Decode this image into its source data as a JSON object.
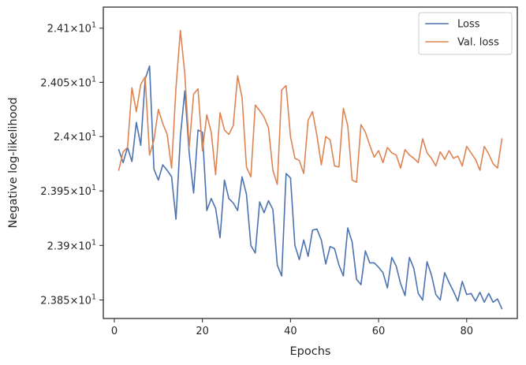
{
  "chart_data": {
    "type": "line",
    "title": "",
    "xlabel": "Epochs",
    "ylabel": "Negative log-likelihood",
    "xlim": [
      -2.5,
      91.5
    ],
    "ylim": [
      23.8331,
      24.1195
    ],
    "yscale": "log",
    "grid": false,
    "legend": "top-right",
    "xticks": [
      {
        "value": 0,
        "label": "0"
      },
      {
        "value": 20,
        "label": "20"
      },
      {
        "value": 40,
        "label": "40"
      },
      {
        "value": 60,
        "label": "60"
      },
      {
        "value": 80,
        "label": "80"
      }
    ],
    "yticks": [
      {
        "value": 23.85,
        "mant": "2.385",
        "exp": "1"
      },
      {
        "value": 23.9,
        "mant": "2.39",
        "exp": "1"
      },
      {
        "value": 23.95,
        "mant": "2.395",
        "exp": "1"
      },
      {
        "value": 24.0,
        "mant": "2.4",
        "exp": "1"
      },
      {
        "value": 24.05,
        "mant": "2.405",
        "exp": "1"
      },
      {
        "value": 24.1,
        "mant": "2.41",
        "exp": "1"
      }
    ],
    "series": [
      {
        "name": "Loss",
        "color": "#4c72b0",
        "x": [
          1,
          2,
          3,
          4,
          5,
          6,
          7,
          8,
          9,
          10,
          11,
          12,
          13,
          14,
          15,
          16,
          17,
          18,
          19,
          20,
          21,
          22,
          23,
          24,
          25,
          26,
          27,
          28,
          29,
          30,
          31,
          32,
          33,
          34,
          35,
          36,
          37,
          38,
          39,
          40,
          41,
          42,
          43,
          44,
          45,
          46,
          47,
          48,
          49,
          50,
          51,
          52,
          53,
          54,
          55,
          56,
          57,
          58,
          59,
          60,
          61,
          62,
          63,
          64,
          65,
          66,
          67,
          68,
          69,
          70,
          71,
          72,
          73,
          74,
          75,
          76,
          77,
          78,
          79,
          80,
          81,
          82,
          83,
          84,
          85,
          86,
          87,
          88
        ],
        "y": [
          23.988,
          23.976,
          23.99,
          23.977,
          24.013,
          23.992,
          24.053,
          24.065,
          23.97,
          23.96,
          23.974,
          23.969,
          23.963,
          23.924,
          24.0,
          24.042,
          23.985,
          23.948,
          24.006,
          24.004,
          23.932,
          23.943,
          23.934,
          23.907,
          23.96,
          23.943,
          23.939,
          23.932,
          23.963,
          23.947,
          23.9,
          23.893,
          23.94,
          23.93,
          23.941,
          23.933,
          23.882,
          23.872,
          23.966,
          23.962,
          23.9,
          23.887,
          23.905,
          23.89,
          23.914,
          23.915,
          23.905,
          23.883,
          23.899,
          23.897,
          23.882,
          23.872,
          23.916,
          23.903,
          23.869,
          23.864,
          23.895,
          23.884,
          23.884,
          23.88,
          23.875,
          23.861,
          23.889,
          23.881,
          23.865,
          23.854,
          23.889,
          23.879,
          23.856,
          23.85,
          23.885,
          23.873,
          23.855,
          23.85,
          23.875,
          23.866,
          23.858,
          23.849,
          23.867,
          23.855,
          23.856,
          23.849,
          23.857,
          23.848,
          23.856,
          23.848,
          23.851,
          23.842
        ]
      },
      {
        "name": "Val. loss",
        "color": "#dd8452",
        "x": [
          1,
          2,
          3,
          4,
          5,
          6,
          7,
          8,
          9,
          10,
          11,
          12,
          13,
          14,
          15,
          16,
          17,
          18,
          19,
          20,
          21,
          22,
          23,
          24,
          25,
          26,
          27,
          28,
          29,
          30,
          31,
          32,
          33,
          34,
          35,
          36,
          37,
          38,
          39,
          40,
          41,
          42,
          43,
          44,
          45,
          46,
          47,
          48,
          49,
          50,
          51,
          52,
          53,
          54,
          55,
          56,
          57,
          58,
          59,
          60,
          61,
          62,
          63,
          64,
          65,
          66,
          67,
          68,
          69,
          70,
          71,
          72,
          73,
          74,
          75,
          76,
          77,
          78,
          79,
          80,
          81,
          82,
          83,
          84,
          85,
          86,
          87,
          88
        ],
        "y": [
          23.969,
          23.986,
          23.99,
          24.045,
          24.023,
          24.048,
          24.055,
          23.983,
          23.997,
          24.025,
          24.012,
          24.002,
          23.971,
          24.045,
          24.098,
          24.058,
          23.99,
          24.039,
          24.044,
          23.987,
          24.02,
          24.004,
          23.965,
          24.022,
          24.006,
          24.002,
          24.01,
          24.056,
          24.036,
          23.972,
          23.963,
          24.029,
          24.024,
          24.018,
          24.008,
          23.969,
          23.956,
          24.043,
          24.047,
          24.0,
          23.98,
          23.978,
          23.966,
          24.015,
          24.023,
          24.001,
          23.974,
          24.0,
          23.997,
          23.973,
          23.972,
          24.026,
          24.01,
          23.96,
          23.958,
          24.011,
          24.004,
          23.992,
          23.981,
          23.987,
          23.976,
          23.99,
          23.985,
          23.983,
          23.971,
          23.988,
          23.983,
          23.98,
          23.976,
          23.998,
          23.985,
          23.98,
          23.973,
          23.986,
          23.979,
          23.987,
          23.98,
          23.982,
          23.973,
          23.991,
          23.985,
          23.979,
          23.969,
          23.991,
          23.984,
          23.975,
          23.971,
          23.998
        ]
      }
    ]
  }
}
